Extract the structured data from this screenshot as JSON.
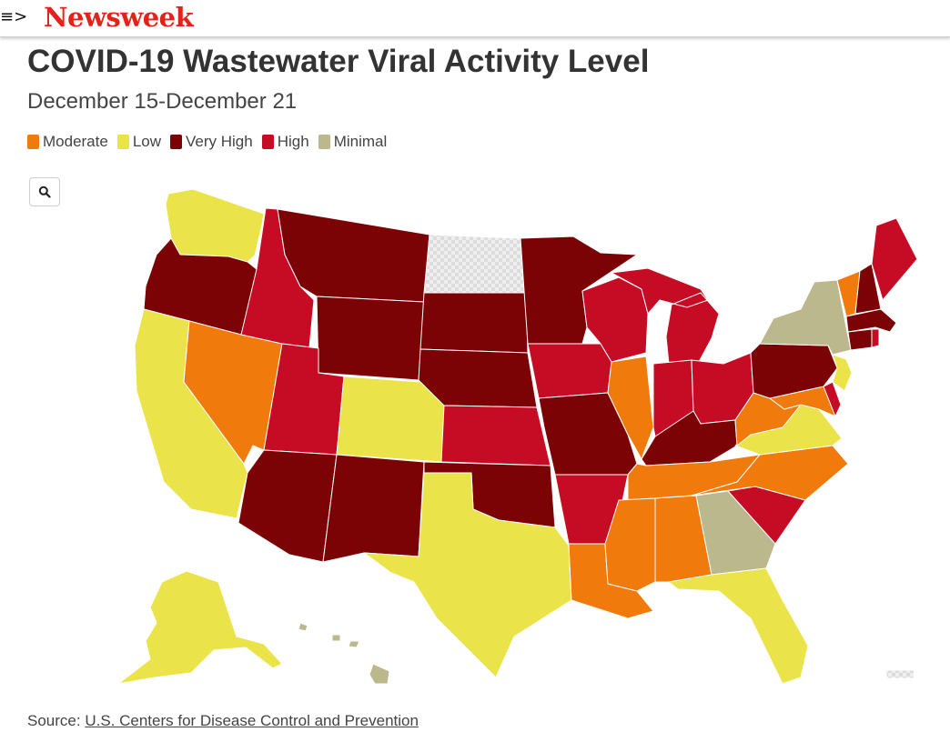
{
  "header": {
    "logo_text": "Newsweek",
    "menu_glyph": "≡>"
  },
  "title": "COVID-19 Wastewater Viral Activity Level",
  "subtitle": "December 15-December 21",
  "legend": [
    {
      "label": "Moderate",
      "color": "#f07a0c"
    },
    {
      "label": "Low",
      "color": "#ebe34a"
    },
    {
      "label": "Very High",
      "color": "#7b0306"
    },
    {
      "label": "High",
      "color": "#c60c24"
    },
    {
      "label": "Minimal",
      "color": "#bcb88d"
    }
  ],
  "nodata_color": "#e6e6e6",
  "icons": {
    "zoom": "search-icon",
    "menu": "menu-icon"
  },
  "source": {
    "prefix": "Source: ",
    "link_text": "U.S. Centers for Disease Control and Prevention"
  },
  "states": {
    "WA": "Low",
    "OR": "Very High",
    "CA": "Low",
    "NV": "Moderate",
    "ID": "High",
    "MT": "Very High",
    "WY": "Very High",
    "UT": "High",
    "CO": "Low",
    "AZ": "Very High",
    "NM": "Very High",
    "ND": "No data",
    "SD": "Very High",
    "NE": "Very High",
    "KS": "High",
    "OK": "Very High",
    "TX": "Low",
    "MN": "Very High",
    "IA": "High",
    "MO": "Very High",
    "AR": "High",
    "LA": "Moderate",
    "WI": "High",
    "IL": "Moderate",
    "MI": "High",
    "IN": "High",
    "OH": "High",
    "KY": "Very High",
    "TN": "Moderate",
    "MS": "Moderate",
    "AL": "Moderate",
    "GA": "Minimal",
    "FL": "Low",
    "SC": "High",
    "NC": "Moderate",
    "VA": "Low",
    "WV": "Moderate",
    "MD": "Moderate",
    "DE": "High",
    "NJ": "Low",
    "PA": "Very High",
    "NY": "Minimal",
    "VT": "Moderate",
    "NH": "Very High",
    "ME": "High",
    "MA": "Very High",
    "CT": "Very High",
    "RI": "High",
    "AK": "Low",
    "HI": "Minimal",
    "PR": "No data"
  }
}
